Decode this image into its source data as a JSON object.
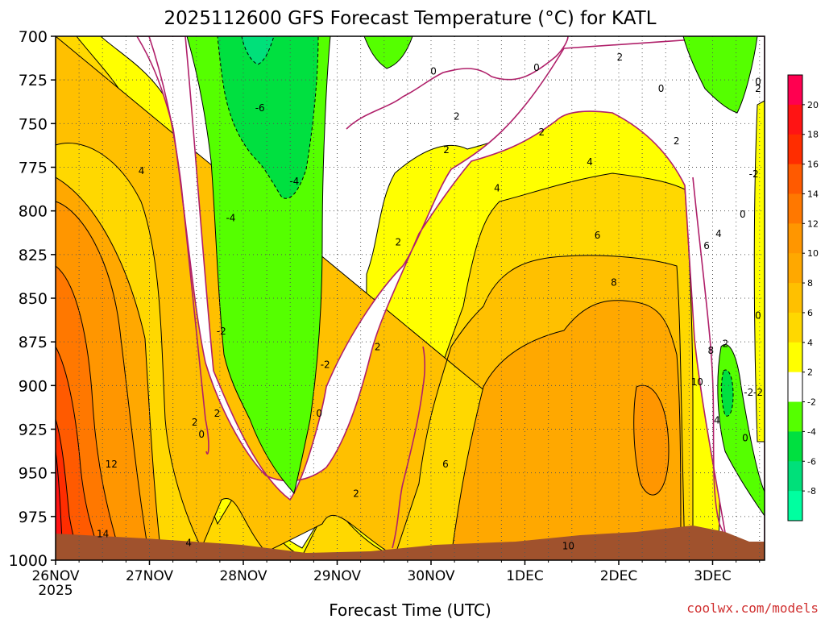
{
  "chart_data": {
    "type": "heatmap",
    "title": "2025112600 GFS Forecast Temperature (°C) for KATL",
    "xlabel": "Forecast Time (UTC)",
    "ylabel": "",
    "credit": "coolwx.com/models",
    "x_ticks": [
      "26NOV",
      "27NOV",
      "28NOV",
      "29NOV",
      "30NOV",
      "1DEC",
      "2DEC",
      "3DEC"
    ],
    "x_year": "2025",
    "x_range_days": [
      0,
      7.66
    ],
    "y_ticks": [
      "700",
      "725",
      "750",
      "775",
      "800",
      "825",
      "850",
      "875",
      "900",
      "925",
      "950",
      "975",
      "1000"
    ],
    "y_range_hpa": [
      700,
      1000
    ],
    "colorbar": {
      "labels": [
        "20",
        "18",
        "16",
        "14",
        "12",
        "10",
        "8",
        "6",
        "4",
        "2",
        "-2",
        "-4",
        "-6",
        "-8"
      ],
      "bands": [
        {
          "range": "20+",
          "color": "#ff0050"
        },
        {
          "range": "18-20",
          "color": "#ff1414"
        },
        {
          "range": "16-18",
          "color": "#ff2d00"
        },
        {
          "range": "14-16",
          "color": "#ff5a00"
        },
        {
          "range": "12-14",
          "color": "#ff7800"
        },
        {
          "range": "10-12",
          "color": "#ff9600"
        },
        {
          "range": "8-10",
          "color": "#ffa800"
        },
        {
          "range": "6-8",
          "color": "#ffc000"
        },
        {
          "range": "4-6",
          "color": "#ffd800"
        },
        {
          "range": "2-4",
          "color": "#ffff00"
        },
        {
          "range": "-2-2",
          "color": "#ffffff"
        },
        {
          "range": "-4 - -2",
          "color": "#55ff00"
        },
        {
          "range": "-6 - -4",
          "color": "#00e040"
        },
        {
          "range": "-8 - -6",
          "color": "#00e07a"
        },
        {
          "range": "< -8",
          "color": "#00ffa0"
        }
      ]
    },
    "contour_labels": [
      {
        "text": "4",
        "day": 1.0,
        "hpa": 777
      },
      {
        "text": "12",
        "day": 0.65,
        "hpa": 945
      },
      {
        "text": "14",
        "day": 0.55,
        "hpa": 985
      },
      {
        "text": "4",
        "day": 1.55,
        "hpa": 990
      },
      {
        "text": "2",
        "day": 1.62,
        "hpa": 921
      },
      {
        "text": "0",
        "day": 1.7,
        "hpa": 928
      },
      {
        "text": "2",
        "day": 1.88,
        "hpa": 916
      },
      {
        "text": "-2",
        "day": 1.93,
        "hpa": 869
      },
      {
        "text": "-4",
        "day": 2.04,
        "hpa": 804
      },
      {
        "text": "-6",
        "day": 2.38,
        "hpa": 741
      },
      {
        "text": "-4",
        "day": 2.78,
        "hpa": 783
      },
      {
        "text": "-2",
        "day": 3.14,
        "hpa": 888
      },
      {
        "text": "0",
        "day": 3.07,
        "hpa": 916
      },
      {
        "text": "2",
        "day": 3.5,
        "hpa": 962
      },
      {
        "text": "2",
        "day": 3.75,
        "hpa": 878
      },
      {
        "text": "2",
        "day": 3.99,
        "hpa": 818
      },
      {
        "text": "0",
        "day": 4.4,
        "hpa": 720
      },
      {
        "text": "2",
        "day": 4.67,
        "hpa": 746
      },
      {
        "text": "2",
        "day": 4.55,
        "hpa": 765
      },
      {
        "text": "6",
        "day": 4.54,
        "hpa": 945
      },
      {
        "text": "4",
        "day": 5.14,
        "hpa": 787
      },
      {
        "text": "0",
        "day": 5.6,
        "hpa": 718
      },
      {
        "text": "2",
        "day": 5.66,
        "hpa": 755
      },
      {
        "text": "4",
        "day": 6.22,
        "hpa": 772
      },
      {
        "text": "6",
        "day": 6.31,
        "hpa": 814
      },
      {
        "text": "8",
        "day": 6.5,
        "hpa": 841
      },
      {
        "text": "10",
        "day": 5.97,
        "hpa": 992
      },
      {
        "text": "2",
        "day": 6.57,
        "hpa": 712
      },
      {
        "text": "0",
        "day": 7.05,
        "hpa": 730
      },
      {
        "text": "2",
        "day": 7.23,
        "hpa": 760
      },
      {
        "text": "6",
        "day": 7.58,
        "hpa": 820
      },
      {
        "text": "4",
        "day": 7.72,
        "hpa": 813
      },
      {
        "text": "10",
        "day": 7.47,
        "hpa": 898
      },
      {
        "text": "8",
        "day": 7.63,
        "hpa": 880
      },
      {
        "text": "2",
        "day": 7.8,
        "hpa": 876
      },
      {
        "text": "4",
        "day": 7.7,
        "hpa": 920
      },
      {
        "text": "0",
        "day": 8.0,
        "hpa": 802
      },
      {
        "text": "0",
        "day": 8.25,
        "hpa": 860
      },
      {
        "text": "0",
        "day": 8.03,
        "hpa": 930
      },
      {
        "text": "-2",
        "day": 8.13,
        "hpa": 779
      },
      {
        "text": "-2",
        "day": 8.07,
        "hpa": 904
      },
      {
        "text": "-2",
        "day": 8.26,
        "hpa": 904
      },
      {
        "text": "0",
        "day": 8.37,
        "hpa": 726
      },
      {
        "text": "2",
        "day": 8.48,
        "hpa": 730
      }
    ]
  }
}
